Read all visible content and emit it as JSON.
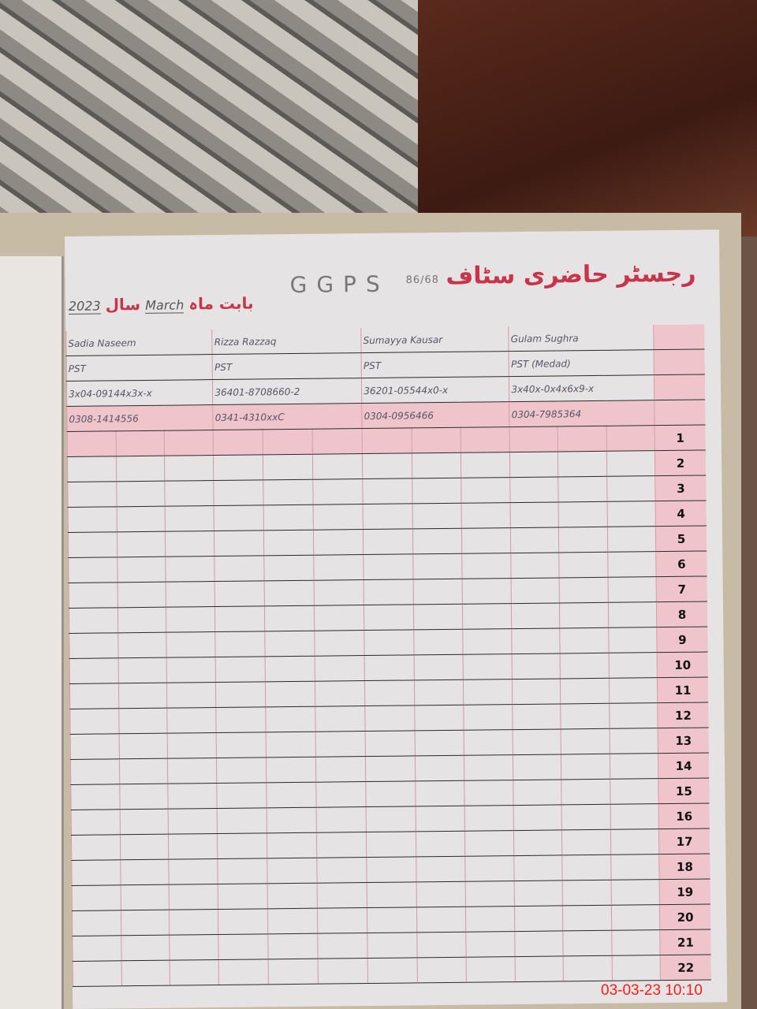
{
  "register": {
    "title": "رجسٹر حاضری سٹاف",
    "school": "GGPS",
    "school_code": "86/68",
    "month_label": "بابت ماہ",
    "month": "March",
    "year_label": "سال",
    "year": "2023"
  },
  "staff": [
    {
      "name": "Sadia Naseem",
      "designation": "PST",
      "cnic": "3x04-09144x3x-x",
      "phone": "0308-1414556"
    },
    {
      "name": "Rizza Razzaq",
      "designation": "PST",
      "cnic": "36401-8708660-2",
      "phone": "0341-4310xxC"
    },
    {
      "name": "Sumayya Kausar",
      "designation": "PST",
      "cnic": "36201-05544x0-x",
      "phone": "0304-0956466"
    },
    {
      "name": "Gulam Sughra",
      "designation": "PST (Medad)",
      "cnic": "3x40x-0x4x6x9-x",
      "phone": "0304-7985364"
    }
  ],
  "days": [
    "1",
    "2",
    "3",
    "4",
    "5",
    "6",
    "7",
    "8",
    "9",
    "10",
    "11",
    "12",
    "13",
    "14",
    "15",
    "16",
    "17",
    "18",
    "19",
    "20",
    "21",
    "22"
  ],
  "timestamp": "03-03-23 10:10",
  "colors": {
    "accent": "#c8344a",
    "pink_column": "#efc4cb",
    "stamp": "#ff1a1a"
  }
}
